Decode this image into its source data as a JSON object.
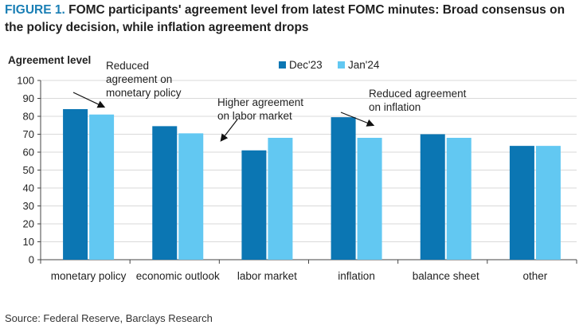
{
  "title": {
    "figure_label": "FIGURE 1.",
    "text": " FOMC participants' agreement level from latest FOMC minutes: Broad consensus on the policy decision, while inflation agreement drops"
  },
  "source": "Source: Federal Reserve, Barclays Research",
  "colors": {
    "dec23": "#0b76b3",
    "jan24": "#62c8f2",
    "grid": "#d9d9d9",
    "axis": "#444444"
  },
  "chart_data": {
    "type": "bar",
    "ylabel": "Agreement level",
    "ylim": [
      0,
      100
    ],
    "yticks": [
      0,
      10,
      20,
      30,
      40,
      50,
      60,
      70,
      80,
      90,
      100
    ],
    "grid": true,
    "legend_position": "top-right",
    "categories": [
      "monetary policy",
      "economic outlook",
      "labor market",
      "inflation",
      "balance sheet",
      "other"
    ],
    "series": [
      {
        "name": "Dec'23",
        "values": [
          84,
          74.5,
          61,
          79.5,
          70,
          63.5
        ]
      },
      {
        "name": "Jan'24",
        "values": [
          81,
          70.5,
          68,
          68,
          68,
          63.5
        ]
      }
    ],
    "annotations": [
      {
        "lines": [
          "Reduced",
          "agreement on",
          "monetary policy"
        ],
        "category_index": 0
      },
      {
        "lines": [
          "Higher agreement",
          "on labor market"
        ],
        "category_index": 2
      },
      {
        "lines": [
          "Reduced agreement",
          "on inflation"
        ],
        "category_index": 3
      }
    ]
  }
}
